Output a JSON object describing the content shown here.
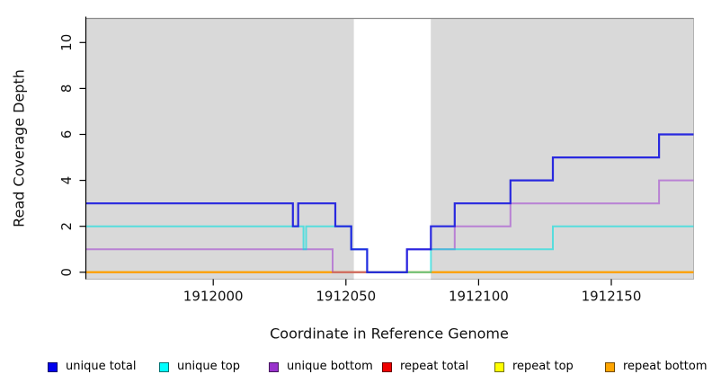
{
  "chart_data": {
    "type": "line",
    "subtype": "step-post-coverage",
    "title": "",
    "xlabel": "Coordinate in Reference Genome",
    "ylabel": "Read Coverage Depth",
    "xlim": [
      1911952,
      1912181
    ],
    "ylim": [
      -0.3,
      11.05
    ],
    "x_ticks": [
      1912000,
      1912050,
      1912100,
      1912150
    ],
    "y_ticks": [
      0,
      2,
      4,
      6,
      8,
      10
    ],
    "grid": "off",
    "plot_bg": "#d9d9d9",
    "highlight_band": {
      "x_start": 1912053,
      "x_end": 1912082,
      "color": "#ffffff"
    },
    "legend_position": "bottom",
    "series": [
      {
        "name": "unique total",
        "color": "#1a1ae0",
        "opacity": 0.92,
        "width": 2.2,
        "points": [
          [
            1911952,
            3
          ],
          [
            1912030,
            2
          ],
          [
            1912032,
            3
          ],
          [
            1912046,
            2
          ],
          [
            1912052,
            1
          ],
          [
            1912058,
            0
          ],
          [
            1912073,
            1
          ],
          [
            1912082,
            2
          ],
          [
            1912091,
            3
          ],
          [
            1912112,
            4
          ],
          [
            1912128,
            5
          ],
          [
            1912168,
            6
          ]
        ]
      },
      {
        "name": "unique top",
        "color": "#00e0e0",
        "opacity": 0.6,
        "width": 2,
        "points": [
          [
            1911952,
            2
          ],
          [
            1912034,
            1
          ],
          [
            1912035,
            2
          ],
          [
            1912052,
            1
          ],
          [
            1912058,
            0
          ],
          [
            1912082,
            1
          ],
          [
            1912128,
            2
          ]
        ]
      },
      {
        "name": "unique bottom",
        "color": "#9b30d0",
        "opacity": 0.52,
        "width": 2,
        "points": [
          [
            1911952,
            1
          ],
          [
            1912045,
            0
          ],
          [
            1912073,
            1
          ],
          [
            1912091,
            2
          ],
          [
            1912112,
            3
          ],
          [
            1912168,
            4
          ]
        ]
      },
      {
        "name": "repeat total",
        "color": "#dd0000",
        "opacity": 0.9,
        "width": 2,
        "points": [
          [
            1911952,
            0
          ]
        ]
      },
      {
        "name": "repeat top",
        "color": "#ffff00",
        "opacity": 0.9,
        "width": 2,
        "points": [
          [
            1911952,
            0
          ]
        ]
      },
      {
        "name": "repeat bottom",
        "color": "#ff9f00",
        "opacity": 1,
        "width": 2,
        "points": [
          [
            1911952,
            0
          ]
        ]
      }
    ],
    "legend": [
      {
        "label": "unique total",
        "color": "#0000ee"
      },
      {
        "label": "unique top",
        "color": "#00ffff"
      },
      {
        "label": "unique bottom",
        "color": "#9932cc"
      },
      {
        "label": "repeat total",
        "color": "#ee0000"
      },
      {
        "label": "repeat top",
        "color": "#ffff00"
      },
      {
        "label": "repeat bottom",
        "color": "#ffa500"
      }
    ]
  }
}
